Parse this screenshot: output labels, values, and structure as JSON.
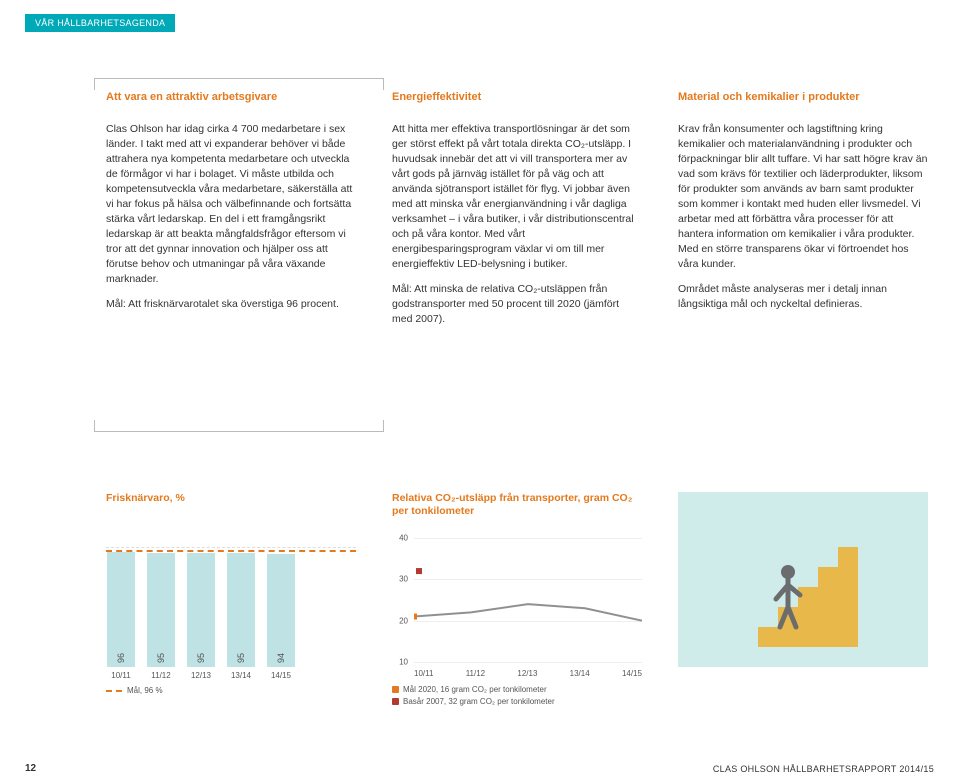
{
  "tag": "VÅR HÅLLBARHETSAGENDA",
  "page_number": "12",
  "footer": "CLAS OHLSON HÅLLBARHETSRAPPORT 2014/15",
  "col1": {
    "title": "Att vara en attraktiv arbetsgivare",
    "p1": "Clas Ohlson har idag cirka 4 700 medarbetare i sex länder. I takt med att vi expanderar behöver vi både attrahera nya kompetenta medarbetare och utveckla de förmågor vi har i bolaget. Vi måste utbilda och kompetensutveckla våra medarbetare, säkerställa att vi har fokus på hälsa och välbefinnande och fortsätta stärka vårt ledarskap. En del i ett framgångsrikt ledarskap är att beakta mångfaldsfrågor eftersom vi tror att det gynnar innovation och hjälper oss att förutse behov och utmaningar på våra växande marknader.",
    "p2": "Mål: Att frisknärvarotalet ska överstiga 96 procent."
  },
  "col2": {
    "title": "Energieffektivitet",
    "p1": "Att hitta mer effektiva transportlösningar är det som ger störst effekt på vårt totala direkta CO₂-utsläpp. I huvudsak innebär det att vi vill transportera mer av vårt gods på järnväg istället för på väg och att använda sjötransport istället för flyg. Vi jobbar även med att minska vår energianvändning i vår dagliga verksamhet – i våra butiker, i vår distributionscentral och på våra kontor. Med vårt energibesparingsprogram växlar vi om till mer energieffektiv LED-belysning i butiker.",
    "p2": "Mål: Att minska de relativa CO₂-utsläppen från godstransporter med 50 procent till 2020 (jämfört med 2007)."
  },
  "col3": {
    "title": "Material och kemikalier i produkter",
    "p1": "Krav från konsumenter och lagstiftning kring kemikalier och materialanvändning i produkter och förpackningar blir allt tuffare. Vi har satt högre krav än vad som krävs för textilier och läderprodukter, liksom för produkter som används av barn samt produkter som kommer i kontakt med huden eller livsmedel. Vi arbetar med att förbättra våra processer för att hantera information om kemikalier i våra produkter. Med en större transparens ökar vi förtroendet hos våra kunder.",
    "p2": "Området måste analyseras mer i detalj innan långsiktiga mål och nyckeltal definieras."
  },
  "bar_chart": {
    "title": "Frisknärvaro, %",
    "categories": [
      "10/11",
      "11/12",
      "12/13",
      "13/14",
      "14/15"
    ],
    "values": [
      96,
      95,
      95,
      95,
      94
    ],
    "bar_color": "#bfe3e4",
    "target_color": "#e37a1e",
    "target_line_y": 96,
    "ymax": 100,
    "legend": "Mål, 96 %"
  },
  "line_chart": {
    "title": "Relativa CO₂-utsläpp från transporter, gram CO₂ per tonkilometer",
    "x": [
      "10/11",
      "11/12",
      "12/13",
      "13/14",
      "14/15"
    ],
    "y_ticks": [
      10,
      20,
      30,
      40
    ],
    "series": [
      21,
      22,
      24,
      23,
      20
    ],
    "color": "#8e9194",
    "dot_color": "#e37a1e",
    "baseline_y": 32,
    "baseline_color": "#b23a2f",
    "legend1": "Mål 2020, 16 gram CO₂ per tonkilometer",
    "legend2": "Basår 2007, 32 gram CO₂ per tonkilometer"
  },
  "info_panel": {
    "bg": "#cfeceb",
    "stairs_color": "#e8b94a",
    "figure_color": "#6a6c6e"
  }
}
